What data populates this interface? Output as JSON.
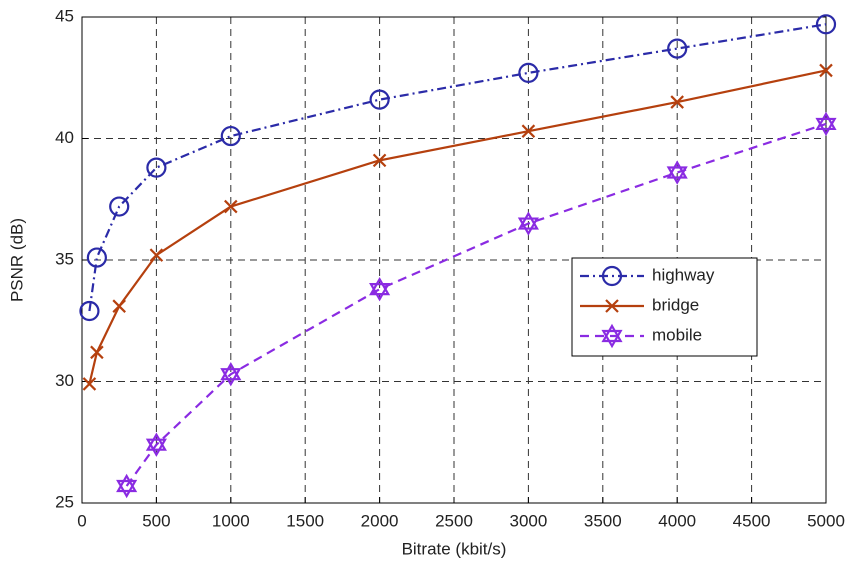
{
  "chart_data": {
    "type": "line",
    "xlabel": "Bitrate (kbit/s)",
    "ylabel": "PSNR (dB)",
    "xlim": [
      0,
      5000
    ],
    "xticks": [
      0,
      500,
      1000,
      1500,
      2000,
      2500,
      3000,
      3500,
      4000,
      4500,
      5000
    ],
    "ylim": [
      25,
      45
    ],
    "yticks": [
      25,
      30,
      35,
      40,
      45
    ],
    "grid": true,
    "legend": "east",
    "series": [
      {
        "name": "highway",
        "color": "#2b2ba8",
        "linestyle": "dashdot",
        "marker": "circle",
        "x": [
          50,
          100,
          250,
          500,
          1000,
          2000,
          3000,
          4000,
          5000
        ],
        "values": [
          32.9,
          35.1,
          37.2,
          38.8,
          40.1,
          41.6,
          42.7,
          43.7,
          44.7
        ]
      },
      {
        "name": "bridge",
        "color": "#b5400e",
        "linestyle": "solid",
        "marker": "cross",
        "x": [
          50,
          100,
          250,
          500,
          1000,
          2000,
          3000,
          4000,
          5000
        ],
        "values": [
          29.9,
          31.2,
          33.1,
          35.2,
          37.2,
          39.1,
          40.3,
          41.5,
          42.8
        ]
      },
      {
        "name": "mobile",
        "color": "#8a2be2",
        "linestyle": "dashed",
        "marker": "hexagram",
        "x": [
          300,
          500,
          1000,
          2000,
          3000,
          4000,
          5000
        ],
        "values": [
          25.7,
          27.4,
          30.3,
          33.8,
          36.5,
          38.6,
          40.6
        ]
      }
    ]
  }
}
